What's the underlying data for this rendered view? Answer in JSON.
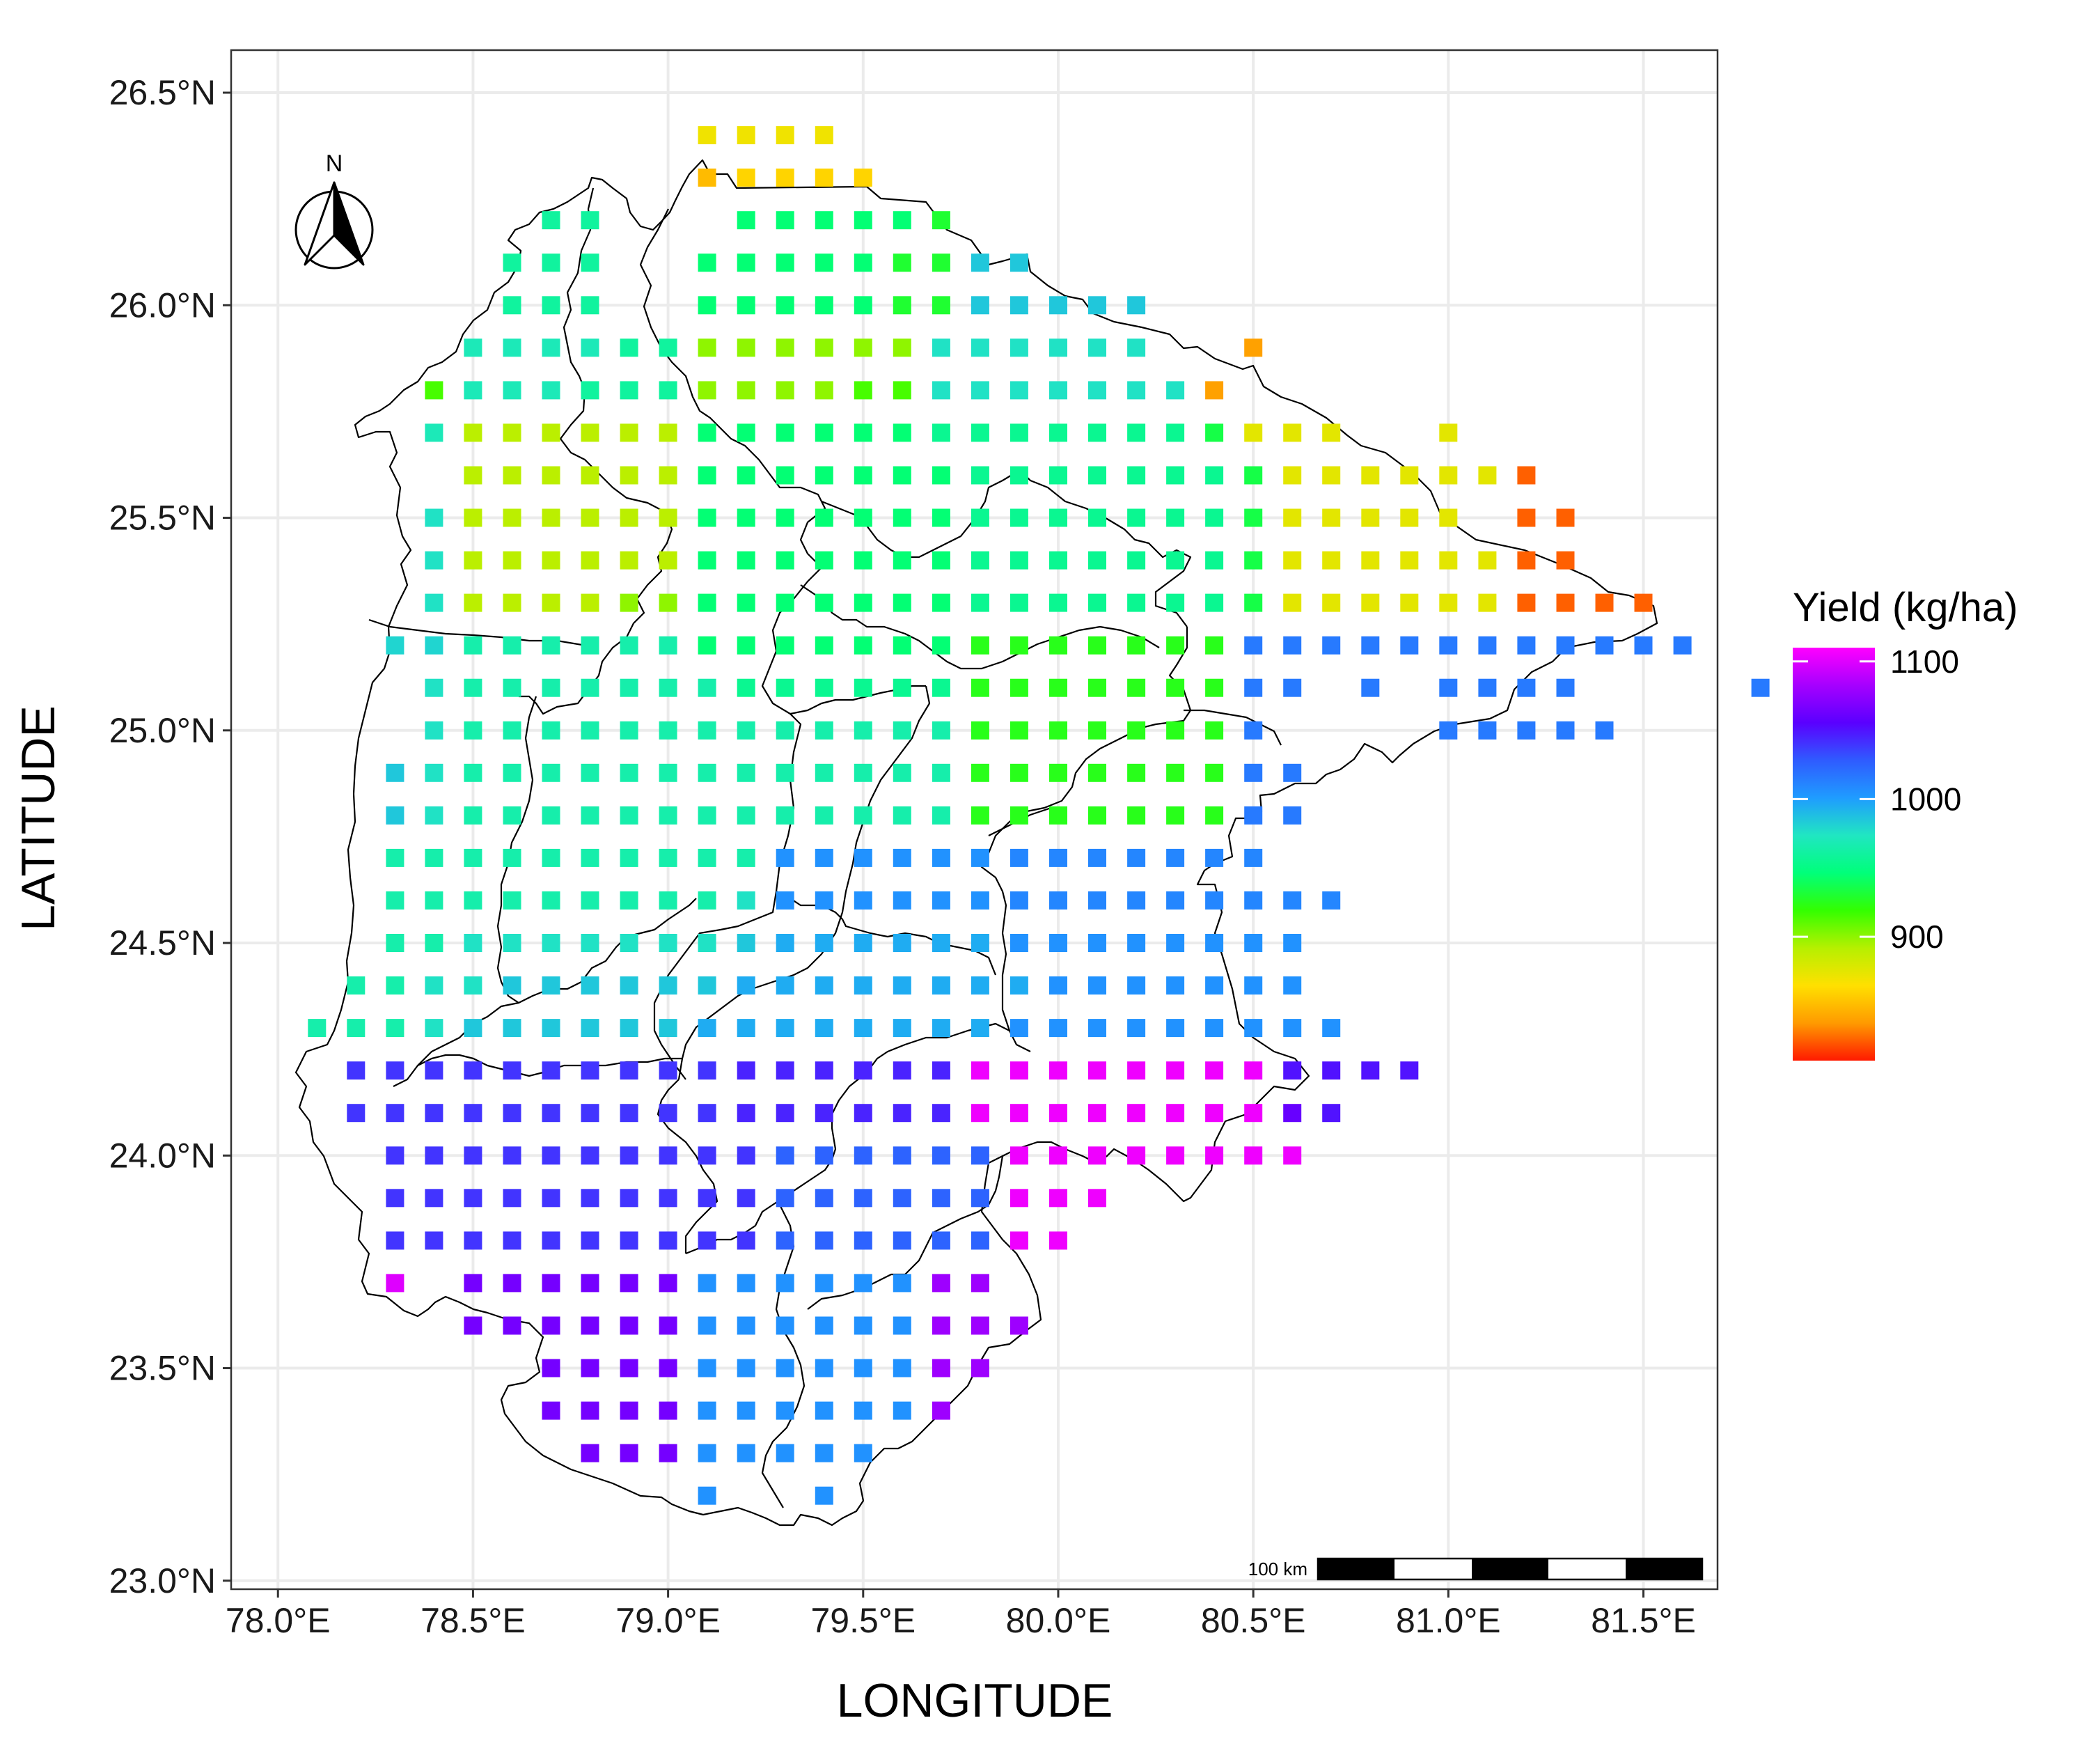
{
  "chart_data": {
    "type": "heatmap",
    "xlabel": "LONGITUDE",
    "ylabel": "LATITUDE",
    "xlim": [
      77.88,
      81.69
    ],
    "ylim": [
      22.98,
      26.6
    ],
    "x_ticks": [
      78.0,
      78.5,
      79.0,
      79.5,
      80.0,
      80.5,
      81.0,
      81.5
    ],
    "y_ticks": [
      23.0,
      23.5,
      24.0,
      24.5,
      25.0,
      25.5,
      26.0,
      26.5
    ],
    "x_tick_labels": [
      "78.0°E",
      "78.5°E",
      "79.0°E",
      "79.5°E",
      "80.0°E",
      "80.5°E",
      "81.0°E",
      "81.5°E"
    ],
    "y_tick_labels": [
      "23.0°N",
      "23.5°N",
      "24.0°N",
      "24.5°N",
      "25.0°N",
      "25.5°N",
      "26.0°N",
      "26.5°N"
    ],
    "grid": true,
    "legend": {
      "title": "Yield (kg/ha)",
      "placement": "right",
      "min": 810,
      "max": 1110,
      "ticks": [
        900,
        1000,
        1100
      ],
      "tick_labels": [
        "900",
        "1000",
        "1100"
      ],
      "colors": [
        "#ff1a00",
        "#ff9a00",
        "#ffe000",
        "#b6f000",
        "#33ff00",
        "#00ff7a",
        "#20e6c2",
        "#1f9cff",
        "#2f5bff",
        "#5a00ff",
        "#a600ff",
        "#ff00ff"
      ]
    },
    "x_cols": [
      78.1,
      78.2,
      78.3,
      78.4,
      78.5,
      78.6,
      78.7,
      78.8,
      78.9,
      79.0,
      79.1,
      79.2,
      79.3,
      79.4,
      79.5,
      79.6,
      79.7,
      79.8,
      79.9,
      80.0,
      80.1,
      80.2,
      80.3,
      80.4,
      80.5,
      80.6,
      80.7,
      80.8,
      80.9,
      81.0,
      81.1,
      81.2,
      81.3,
      81.4,
      81.5
    ],
    "rows": [
      {
        "lat": 26.4,
        "start": 79.1,
        "values": [
          870,
          870,
          870,
          870
        ]
      },
      {
        "lat": 26.3,
        "start": 79.1,
        "values": [
          850,
          860,
          860,
          860,
          860
        ]
      },
      {
        "lat": 26.2,
        "start": 78.7,
        "values": [
          960,
          960,
          null,
          null,
          null,
          945,
          945,
          945,
          945,
          945,
          930
        ]
      },
      {
        "lat": 26.1,
        "start": 78.6,
        "values": [
          960,
          960,
          960,
          null,
          null,
          945,
          945,
          945,
          945,
          945,
          930,
          930,
          985,
          985
        ]
      },
      {
        "lat": 26.0,
        "start": 78.6,
        "values": [
          960,
          960,
          960,
          null,
          null,
          945,
          945,
          945,
          945,
          945,
          930,
          930,
          985,
          985,
          985,
          985,
          985
        ]
      },
      {
        "lat": 25.9,
        "start": 78.5,
        "values": [
          970,
          970,
          970,
          970,
          960,
          960,
          900,
          900,
          900,
          900,
          900,
          900,
          975,
          975,
          975,
          975,
          975,
          975,
          null,
          null,
          840
        ]
      },
      {
        "lat": 25.8,
        "start": 78.4,
        "values": [
          915,
          970,
          970,
          970,
          960,
          960,
          960,
          900,
          900,
          900,
          900,
          915,
          915,
          975,
          975,
          975,
          975,
          975,
          975,
          975,
          840
        ]
      },
      {
        "lat": 25.7,
        "start": 78.4,
        "values": [
          970,
          890,
          890,
          890,
          890,
          890,
          890,
          945,
          945,
          945,
          945,
          945,
          945,
          955,
          955,
          955,
          955,
          955,
          955,
          955,
          935,
          875,
          875,
          875,
          null,
          null,
          875
        ]
      },
      {
        "lat": 25.6,
        "start": 78.5,
        "values": [
          890,
          890,
          890,
          890,
          890,
          890,
          945,
          945,
          945,
          945,
          945,
          945,
          945,
          955,
          955,
          955,
          955,
          955,
          955,
          955,
          935,
          875,
          875,
          875,
          875,
          875,
          875,
          825
        ]
      },
      {
        "lat": 25.5,
        "start": 78.4,
        "values": [
          975,
          890,
          890,
          890,
          890,
          890,
          890,
          945,
          945,
          945,
          945,
          945,
          945,
          945,
          955,
          955,
          955,
          955,
          955,
          955,
          955,
          935,
          875,
          875,
          875,
          875,
          875,
          null,
          825,
          825
        ]
      },
      {
        "lat": 25.4,
        "start": 78.4,
        "values": [
          975,
          890,
          890,
          890,
          890,
          890,
          890,
          945,
          945,
          945,
          945,
          945,
          945,
          945,
          955,
          955,
          955,
          955,
          955,
          955,
          955,
          935,
          875,
          875,
          875,
          875,
          875,
          875,
          825,
          825
        ]
      },
      {
        "lat": 25.3,
        "start": 78.4,
        "values": [
          975,
          890,
          890,
          890,
          890,
          900,
          900,
          945,
          945,
          945,
          945,
          945,
          945,
          945,
          955,
          955,
          955,
          955,
          955,
          955,
          955,
          935,
          875,
          875,
          875,
          875,
          875,
          875,
          825,
          825,
          825,
          825
        ]
      },
      {
        "lat": 25.2,
        "start": 78.3,
        "values": [
          980,
          980,
          965,
          965,
          965,
          965,
          965,
          965,
          945,
          945,
          945,
          945,
          945,
          945,
          945,
          925,
          925,
          925,
          925,
          925,
          925,
          925,
          1015,
          1015,
          1015,
          1015,
          1015,
          1015,
          1015,
          1015,
          1015,
          1015,
          1015,
          1015
        ]
      },
      {
        "lat": 25.1,
        "start": 78.4,
        "values": [
          975,
          965,
          965,
          965,
          965,
          965,
          965,
          965,
          955,
          955,
          955,
          955,
          955,
          955,
          925,
          925,
          925,
          925,
          925,
          925,
          925,
          1015,
          1015,
          null,
          1015,
          null,
          1015,
          1015,
          1015,
          1015,
          null,
          null,
          null,
          null,
          1015
        ]
      },
      {
        "lat": 25.0,
        "start": 78.4,
        "values": [
          975,
          965,
          965,
          965,
          965,
          965,
          965,
          965,
          965,
          965,
          965,
          965,
          965,
          965,
          925,
          925,
          925,
          925,
          925,
          925,
          925,
          1015,
          null,
          null,
          null,
          null,
          1015,
          1015,
          1015,
          1015,
          1015
        ]
      },
      {
        "lat": 24.9,
        "start": 78.3,
        "values": [
          985,
          975,
          965,
          965,
          965,
          965,
          965,
          965,
          965,
          965,
          965,
          965,
          965,
          965,
          965,
          925,
          925,
          925,
          925,
          925,
          925,
          925,
          1015,
          1015
        ]
      },
      {
        "lat": 24.8,
        "start": 78.3,
        "values": [
          985,
          975,
          965,
          965,
          965,
          965,
          965,
          965,
          965,
          965,
          965,
          965,
          965,
          965,
          965,
          925,
          925,
          925,
          925,
          925,
          925,
          925,
          1015,
          1015
        ]
      },
      {
        "lat": 24.7,
        "start": 78.3,
        "values": [
          965,
          965,
          965,
          965,
          965,
          965,
          965,
          965,
          965,
          965,
          1005,
          1005,
          1005,
          1005,
          1005,
          1005,
          1010,
          1010,
          1010,
          1010,
          1010,
          1010,
          1010
        ]
      },
      {
        "lat": 24.6,
        "start": 78.3,
        "values": [
          965,
          965,
          965,
          965,
          965,
          965,
          965,
          965,
          965,
          975,
          1005,
          1005,
          1005,
          1005,
          1005,
          1005,
          1010,
          1010,
          1010,
          1010,
          1010,
          1010,
          1010,
          1010,
          1010
        ]
      },
      {
        "lat": 24.5,
        "start": 78.3,
        "values": [
          965,
          965,
          975,
          975,
          975,
          975,
          975,
          975,
          975,
          985,
          995,
          995,
          995,
          995,
          995,
          995,
          1005,
          1005,
          1005,
          1005,
          1005,
          1005,
          1005,
          1005
        ]
      },
      {
        "lat": 24.4,
        "start": 78.2,
        "values": [
          965,
          965,
          975,
          975,
          985,
          985,
          985,
          985,
          985,
          985,
          995,
          995,
          995,
          995,
          995,
          995,
          995,
          995,
          1005,
          1005,
          1005,
          1005,
          1005,
          1005,
          1005
        ]
      },
      {
        "lat": 24.3,
        "start": 78.1,
        "values": [
          965,
          965,
          965,
          975,
          985,
          985,
          985,
          985,
          985,
          985,
          995,
          995,
          995,
          995,
          995,
          995,
          995,
          995,
          1005,
          1005,
          1005,
          1005,
          1005,
          1005,
          1005,
          1005,
          1005
        ]
      },
      {
        "lat": 24.2,
        "start": 78.2,
        "values": [
          1040,
          1040,
          1040,
          1040,
          1040,
          1040,
          1040,
          1040,
          1040,
          1040,
          1045,
          1045,
          1045,
          1045,
          1045,
          1045,
          1105,
          1105,
          1105,
          1105,
          1105,
          1105,
          1105,
          1105,
          1050,
          1050,
          1050,
          1050
        ]
      },
      {
        "lat": 24.1,
        "start": 78.2,
        "values": [
          1040,
          1040,
          1040,
          1040,
          1040,
          1040,
          1040,
          1040,
          1040,
          1040,
          1045,
          1045,
          1045,
          1045,
          1045,
          1045,
          1105,
          1105,
          1105,
          1105,
          1105,
          1105,
          1105,
          1105,
          1060,
          1050
        ]
      },
      {
        "lat": 24.0,
        "start": 78.3,
        "values": [
          1040,
          1040,
          1040,
          1040,
          1040,
          1040,
          1040,
          1040,
          1040,
          1040,
          1025,
          1025,
          1025,
          1025,
          1025,
          1025,
          1105,
          1105,
          1105,
          1105,
          1105,
          1105,
          1105,
          1105
        ]
      },
      {
        "lat": 23.9,
        "start": 78.3,
        "values": [
          1040,
          1040,
          1040,
          1040,
          1040,
          1040,
          1040,
          1040,
          1040,
          1040,
          1025,
          1025,
          1025,
          1025,
          1025,
          1025,
          1105,
          1105,
          1105
        ]
      },
      {
        "lat": 23.8,
        "start": 78.3,
        "values": [
          1040,
          1040,
          1040,
          1040,
          1040,
          1040,
          1040,
          1040,
          1040,
          1040,
          1025,
          1025,
          1025,
          1025,
          1025,
          1025,
          1105,
          1105
        ]
      },
      {
        "lat": 23.7,
        "start": 78.3,
        "values": [
          1100,
          null,
          1065,
          1065,
          1065,
          1065,
          1065,
          1065,
          1005,
          1005,
          1005,
          1005,
          1005,
          1005,
          1080,
          1080
        ]
      },
      {
        "lat": 23.6,
        "start": 78.5,
        "values": [
          1065,
          1065,
          1065,
          1065,
          1065,
          1065,
          1005,
          1005,
          1005,
          1005,
          1005,
          1005,
          1080,
          1080,
          1080
        ]
      },
      {
        "lat": 23.5,
        "start": 78.7,
        "values": [
          1065,
          1065,
          1065,
          1065,
          1005,
          1005,
          1005,
          1005,
          1005,
          1005,
          1080,
          1080
        ]
      },
      {
        "lat": 23.4,
        "start": 78.7,
        "values": [
          1065,
          1065,
          1065,
          1065,
          1005,
          1005,
          1005,
          1005,
          1005,
          1005,
          1080
        ]
      },
      {
        "lat": 23.3,
        "start": 78.8,
        "values": [
          1065,
          1065,
          1065,
          1005,
          1005,
          1005,
          1005,
          1005
        ]
      },
      {
        "lat": 23.2,
        "start": 79.1,
        "values": [
          1005,
          null,
          null,
          1005
        ]
      }
    ]
  },
  "north_arrow": {
    "label": "N"
  },
  "scale_bar": {
    "label": "100 km"
  }
}
